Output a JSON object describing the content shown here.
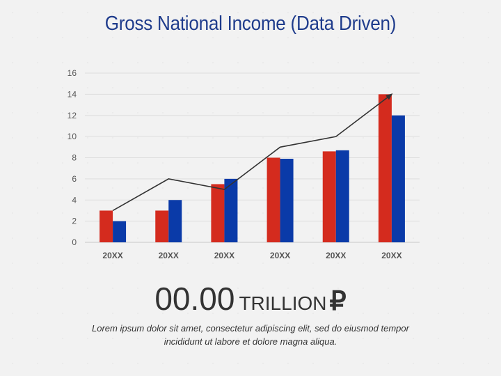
{
  "title": "Gross National Income (Data Driven)",
  "chart_data": {
    "type": "bar",
    "categories": [
      "20XX",
      "20XX",
      "20XX",
      "20XX",
      "20XX",
      "20XX"
    ],
    "series": [
      {
        "values": [
          3,
          3,
          5.5,
          8,
          8.6,
          14
        ],
        "color": "#d42b1e"
      },
      {
        "values": [
          2,
          4,
          6,
          7.9,
          8.7,
          12
        ],
        "color": "#0a3aa8"
      }
    ],
    "line": {
      "values": [
        3,
        6,
        5,
        9,
        10,
        14
      ],
      "color": "#333333",
      "arrow": true
    },
    "yticks": [
      0,
      2,
      4,
      6,
      8,
      10,
      12,
      14,
      16
    ],
    "ylim": [
      0,
      16
    ],
    "grid": true,
    "legend": "none"
  },
  "summary": {
    "value": "00.00",
    "unit": "TRILLION",
    "currency": "₽"
  },
  "description": "Lorem ipsum dolor sit amet, consectetur adipiscing elit, sed do eiusmod tempor incididunt ut labore et dolore magna aliqua."
}
